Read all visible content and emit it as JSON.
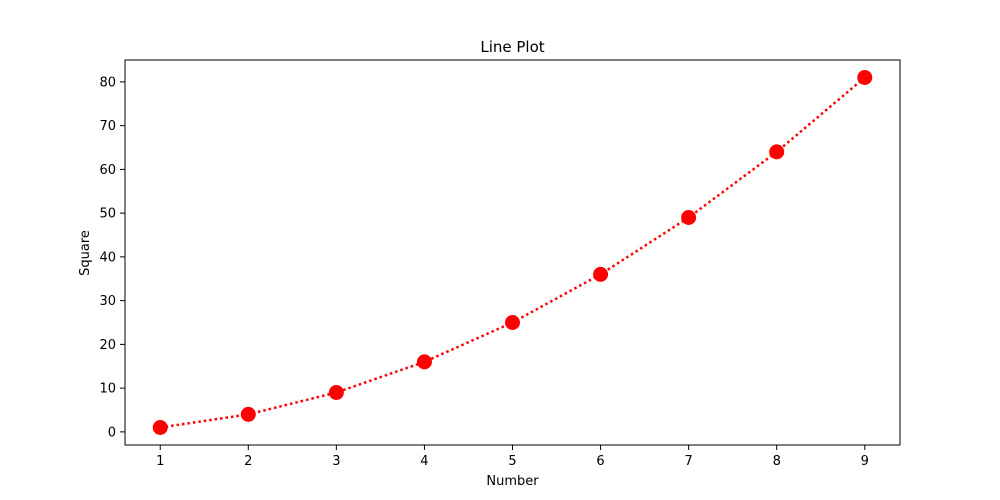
{
  "chart_data": {
    "type": "line",
    "title": "Line Plot",
    "xlabel": "Number",
    "ylabel": "Square",
    "x": [
      1,
      2,
      3,
      4,
      5,
      6,
      7,
      8,
      9
    ],
    "series": [
      {
        "values": [
          1,
          4,
          9,
          16,
          25,
          36,
          49,
          64,
          81
        ],
        "color": "#ff0000",
        "line_style": "dotted",
        "marker": "circle"
      }
    ],
    "xlim": [
      0.6,
      9.4
    ],
    "ylim": [
      -3,
      85
    ],
    "x_ticks": [
      1,
      2,
      3,
      4,
      5,
      6,
      7,
      8,
      9
    ],
    "y_ticks": [
      0,
      10,
      20,
      30,
      40,
      50,
      60,
      70,
      80
    ],
    "grid": false,
    "legend": "none"
  }
}
